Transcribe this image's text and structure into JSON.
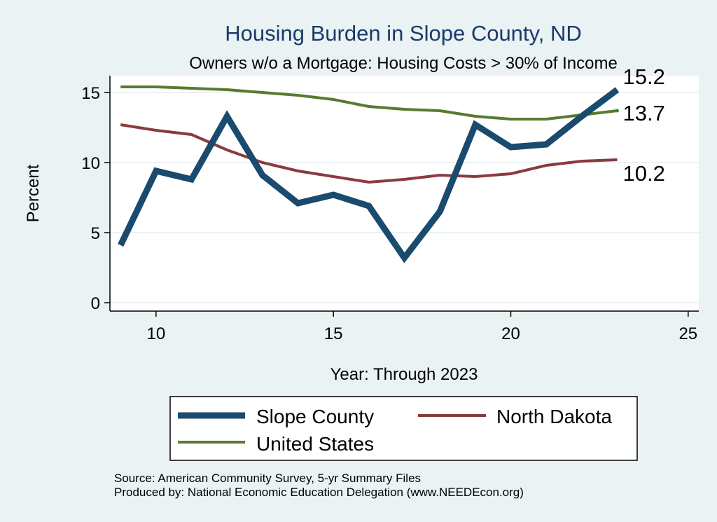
{
  "chart_data": {
    "type": "line",
    "title": "Housing Burden in Slope County, ND",
    "subtitle": "Owners w/o a Mortgage: Housing Costs > 30% of Income",
    "xlabel": "Year: Through 2023",
    "ylabel": "Percent",
    "xlim": [
      8.7,
      25.3
    ],
    "ylim": [
      -0.6,
      16.2
    ],
    "x_ticks": [
      10,
      15,
      20,
      25
    ],
    "y_ticks": [
      0,
      5,
      10,
      15
    ],
    "grid": "horizontal",
    "legend_position": "bottom",
    "x": [
      9,
      10,
      11,
      12,
      13,
      14,
      15,
      16,
      17,
      18,
      19,
      20,
      21,
      22,
      23
    ],
    "series": [
      {
        "name": "Slope County",
        "color": "#1a4a6e",
        "values": [
          4.1,
          9.4,
          8.8,
          13.3,
          9.1,
          7.1,
          7.7,
          6.9,
          3.2,
          6.5,
          12.7,
          11.1,
          11.3,
          13.3,
          15.2
        ],
        "end_label": "15.2"
      },
      {
        "name": "North Dakota",
        "color": "#8b3a3f",
        "values": [
          12.7,
          12.3,
          12.0,
          10.9,
          10.0,
          9.4,
          9.0,
          8.6,
          8.8,
          9.1,
          9.0,
          9.2,
          9.8,
          10.1,
          10.2
        ],
        "end_label": "10.2"
      },
      {
        "name": "United States",
        "color": "#5a7a30",
        "values": [
          15.4,
          15.4,
          15.3,
          15.2,
          15.0,
          14.8,
          14.5,
          14.0,
          13.8,
          13.7,
          13.3,
          13.1,
          13.1,
          13.4,
          13.7
        ],
        "end_label": "13.7"
      }
    ]
  },
  "notes": {
    "source": "Source: American Community Survey, 5-yr Summary Files",
    "produced": "Produced by: National Economic Education Delegation (www.NEEDEcon.org)"
  }
}
